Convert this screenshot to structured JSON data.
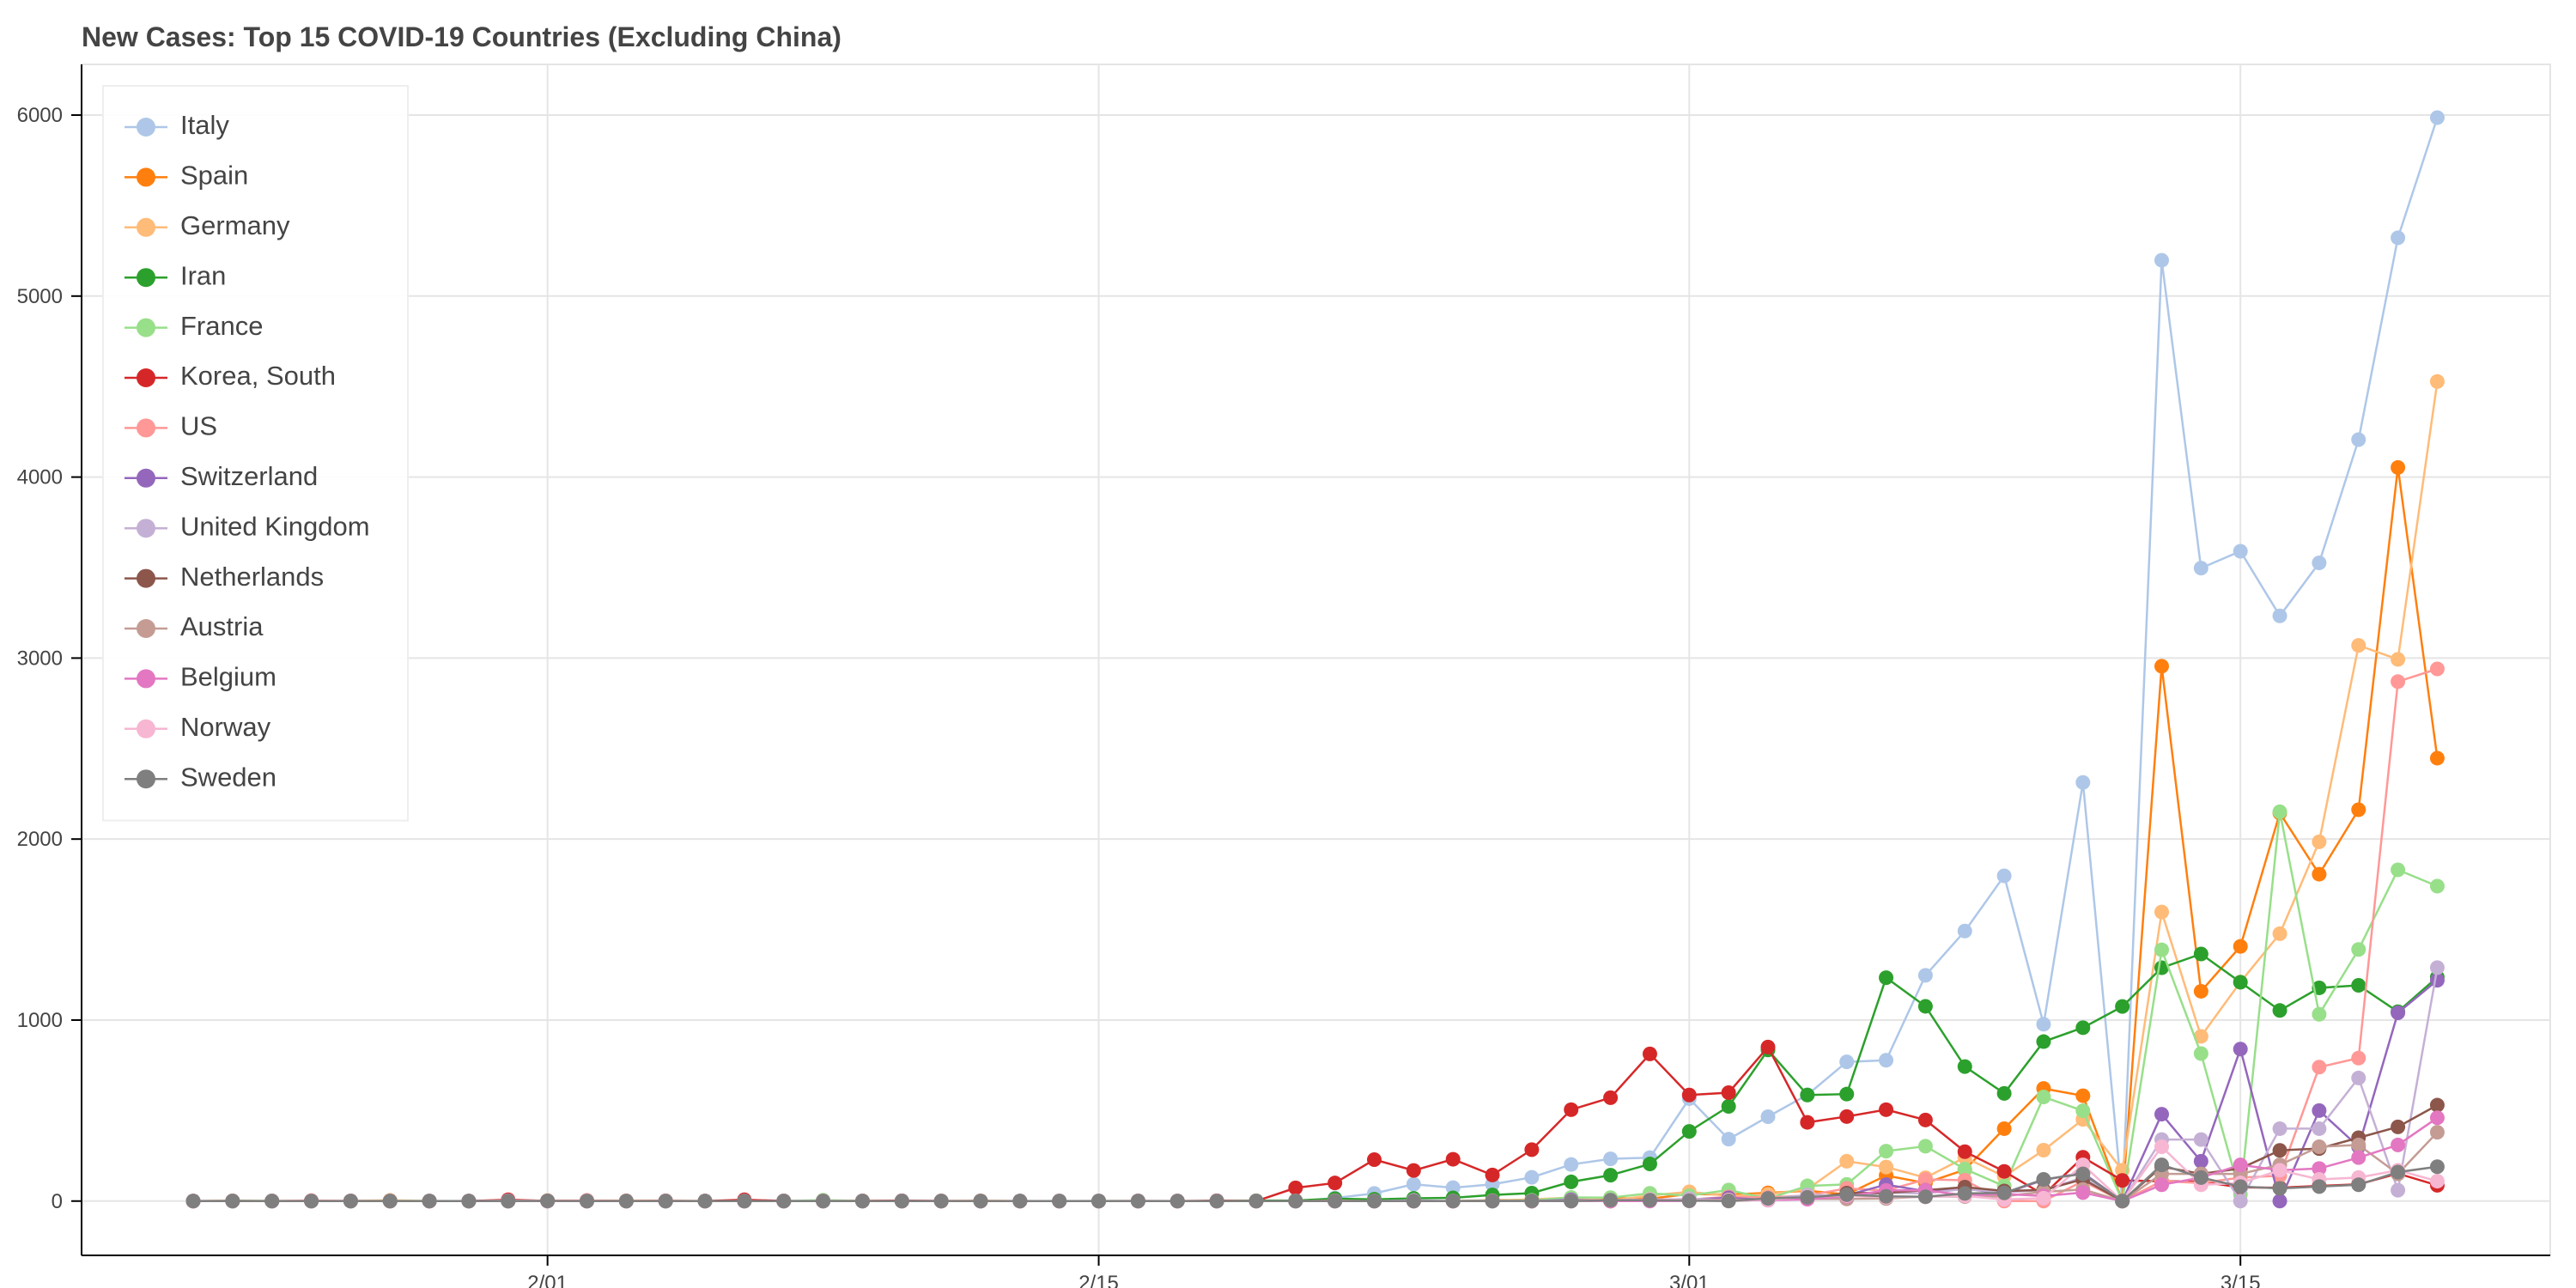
{
  "chart_data": {
    "type": "line",
    "title": "New Cases: Top 15 COVID-19 Countries (Excluding China)",
    "x": [
      "1/23",
      "1/24",
      "1/25",
      "1/26",
      "1/27",
      "1/28",
      "1/29",
      "1/30",
      "1/31",
      "2/1",
      "2/2",
      "2/3",
      "2/4",
      "2/5",
      "2/6",
      "2/7",
      "2/8",
      "2/9",
      "2/10",
      "2/11",
      "2/12",
      "2/13",
      "2/14",
      "2/15",
      "2/16",
      "2/17",
      "2/18",
      "2/19",
      "2/20",
      "2/21",
      "2/22",
      "2/23",
      "2/24",
      "2/25",
      "2/26",
      "2/27",
      "2/28",
      "2/29",
      "3/1",
      "3/2",
      "3/3",
      "3/4",
      "3/5",
      "3/6",
      "3/7",
      "3/8",
      "3/9",
      "3/10",
      "3/11",
      "3/12",
      "3/13",
      "3/14",
      "3/15",
      "3/16",
      "3/17",
      "3/18",
      "3/19",
      "3/20"
    ],
    "xticks": [
      {
        "value": "2/1",
        "label": "2/01"
      },
      {
        "value": "2/15",
        "label": "2/15"
      },
      {
        "value": "3/1",
        "label": "3/01"
      },
      {
        "value": "3/15",
        "label": "3/15"
      }
    ],
    "ylim": [
      -300,
      6280
    ],
    "yticks": [
      0,
      1000,
      2000,
      3000,
      4000,
      5000,
      6000
    ],
    "grid": true,
    "legend": "top-left",
    "series": [
      {
        "name": "Italy",
        "color": "#aec7e8",
        "values": [
          0,
          0,
          0,
          0,
          0,
          0,
          0,
          0,
          2,
          0,
          0,
          0,
          0,
          0,
          0,
          1,
          0,
          0,
          0,
          0,
          0,
          0,
          0,
          0,
          0,
          0,
          0,
          0,
          0,
          17,
          42,
          93,
          74,
          93,
          131,
          202,
          233,
          240,
          566,
          342,
          466,
          587,
          769,
          778,
          1247,
          1492,
          1797,
          977,
          2313,
          0,
          5198,
          3497,
          3590,
          3233,
          3526,
          4207,
          5322,
          5986
        ]
      },
      {
        "name": "Spain",
        "color": "#ff7f0e",
        "values": [
          0,
          0,
          0,
          0,
          0,
          0,
          0,
          0,
          0,
          1,
          0,
          0,
          0,
          0,
          0,
          0,
          0,
          1,
          0,
          0,
          0,
          0,
          0,
          0,
          0,
          0,
          0,
          0,
          0,
          0,
          0,
          0,
          0,
          4,
          7,
          2,
          17,
          13,
          39,
          36,
          45,
          57,
          37,
          141,
          100,
          173,
          400,
          622,
          582,
          0,
          2955,
          1159,
          1407,
          2144,
          1806,
          2162,
          4053,
          2447
        ]
      },
      {
        "name": "Germany",
        "color": "#ffbb78",
        "values": [
          0,
          0,
          0,
          0,
          0,
          4,
          0,
          0,
          1,
          3,
          0,
          2,
          2,
          0,
          0,
          1,
          0,
          0,
          1,
          0,
          2,
          0,
          0,
          0,
          0,
          0,
          0,
          0,
          0,
          0,
          0,
          0,
          0,
          1,
          10,
          19,
          2,
          31,
          51,
          29,
          37,
          66,
          220,
          188,
          129,
          241,
          136,
          281,
          451,
          170,
          1597,
          910,
          1210,
          1477,
          1985,
          3070,
          2993,
          4528
        ]
      },
      {
        "name": "Iran",
        "color": "#2ca02c",
        "values": [
          0,
          0,
          0,
          0,
          0,
          0,
          0,
          0,
          0,
          0,
          0,
          0,
          0,
          0,
          0,
          0,
          0,
          0,
          0,
          0,
          0,
          0,
          0,
          0,
          0,
          0,
          0,
          2,
          3,
          13,
          10,
          15,
          18,
          34,
          44,
          106,
          143,
          205,
          385,
          523,
          835,
          586,
          591,
          1234,
          1076,
          743,
          595,
          881,
          958,
          1075,
          1289,
          1365,
          1209,
          1053,
          1178,
          1192,
          1046,
          1237
        ]
      },
      {
        "name": "France",
        "color": "#98df8a",
        "values": [
          0,
          2,
          1,
          0,
          0,
          1,
          1,
          0,
          0,
          1,
          0,
          0,
          0,
          0,
          0,
          0,
          5,
          0,
          0,
          0,
          0,
          0,
          0,
          1,
          0,
          0,
          0,
          0,
          0,
          0,
          0,
          0,
          0,
          2,
          4,
          20,
          19,
          43,
          30,
          61,
          13,
          84,
          92,
          276,
          303,
          177,
          83,
          575,
          499,
          0,
          1388,
          815,
          36,
          2151,
          1032,
          1390,
          1830,
          1740
        ]
      },
      {
        "name": "Korea, South",
        "color": "#d62728",
        "values": [
          0,
          1,
          0,
          1,
          1,
          0,
          0,
          0,
          7,
          1,
          3,
          0,
          1,
          0,
          7,
          1,
          0,
          1,
          2,
          1,
          0,
          0,
          0,
          0,
          1,
          0,
          2,
          0,
          73,
          100,
          229,
          169,
          231,
          144,
          284,
          505,
          571,
          813,
          586,
          599,
          851,
          435,
          467,
          505,
          448,
          273,
          164,
          35,
          242,
          114,
          110,
          107,
          76,
          74,
          84,
          93,
          152,
          87
        ]
      },
      {
        "name": "US",
        "color": "#ff9896",
        "values": [
          0,
          1,
          0,
          3,
          0,
          0,
          0,
          0,
          1,
          2,
          3,
          0,
          0,
          0,
          0,
          0,
          0,
          0,
          0,
          0,
          1,
          0,
          0,
          0,
          0,
          0,
          0,
          0,
          0,
          2,
          0,
          0,
          0,
          0,
          0,
          0,
          2,
          7,
          8,
          23,
          20,
          31,
          70,
          58,
          120,
          115,
          0,
          0,
          110,
          0,
          110,
          100,
          130,
          140,
          740,
          790,
          2870,
          2940
        ]
      },
      {
        "name": "Switzerland",
        "color": "#9467bd",
        "values": [
          0,
          0,
          0,
          0,
          0,
          0,
          0,
          0,
          0,
          0,
          0,
          0,
          0,
          0,
          0,
          0,
          0,
          0,
          0,
          0,
          0,
          0,
          0,
          0,
          0,
          0,
          0,
          0,
          0,
          0,
          0,
          0,
          0,
          1,
          0,
          7,
          1,
          8,
          9,
          18,
          6,
          21,
          32,
          91,
          55,
          68,
          42,
          117,
          156,
          0,
          480,
          220,
          840,
          0,
          500,
          300,
          1040,
          1220
        ]
      },
      {
        "name": "United Kingdom",
        "color": "#c5b0d5",
        "values": [
          0,
          0,
          0,
          0,
          0,
          0,
          0,
          0,
          2,
          0,
          0,
          0,
          0,
          0,
          0,
          1,
          0,
          0,
          1,
          0,
          0,
          0,
          0,
          0,
          0,
          0,
          0,
          0,
          0,
          0,
          0,
          4,
          0,
          0,
          0,
          2,
          5,
          3,
          13,
          4,
          11,
          34,
          29,
          46,
          43,
          67,
          48,
          61,
          130,
          0,
          340,
          340,
          0,
          400,
          400,
          680,
          60,
          1290
        ]
      },
      {
        "name": "Netherlands",
        "color": "#8c564b",
        "values": [
          0,
          0,
          0,
          0,
          0,
          0,
          0,
          0,
          0,
          0,
          0,
          0,
          0,
          0,
          0,
          0,
          0,
          0,
          0,
          0,
          0,
          0,
          0,
          0,
          0,
          0,
          0,
          0,
          0,
          0,
          0,
          0,
          0,
          0,
          0,
          1,
          0,
          5,
          4,
          8,
          6,
          14,
          44,
          46,
          60,
          77,
          56,
          61,
          121,
          0,
          190,
          150,
          180,
          280,
          290,
          350,
          410,
          530
        ]
      },
      {
        "name": "Austria",
        "color": "#c49c94",
        "values": [
          0,
          0,
          0,
          0,
          0,
          0,
          0,
          0,
          0,
          0,
          0,
          0,
          0,
          0,
          0,
          0,
          0,
          0,
          0,
          0,
          0,
          0,
          0,
          0,
          0,
          0,
          0,
          0,
          0,
          0,
          0,
          0,
          0,
          2,
          0,
          1,
          0,
          6,
          4,
          0,
          8,
          12,
          12,
          14,
          25,
          25,
          27,
          51,
          64,
          0,
          150,
          150,
          150,
          200,
          300,
          310,
          150,
          380
        ]
      },
      {
        "name": "Belgium",
        "color": "#e377c2",
        "values": [
          0,
          0,
          0,
          0,
          0,
          0,
          0,
          0,
          0,
          0,
          0,
          0,
          1,
          0,
          0,
          0,
          0,
          0,
          0,
          0,
          0,
          0,
          0,
          0,
          0,
          0,
          0,
          0,
          0,
          0,
          0,
          0,
          0,
          0,
          0,
          0,
          0,
          0,
          1,
          6,
          5,
          10,
          27,
          59,
          60,
          31,
          39,
          28,
          47,
          0,
          90,
          130,
          200,
          170,
          180,
          240,
          310,
          460
        ]
      },
      {
        "name": "Norway",
        "color": "#f7b6d2",
        "values": [
          0,
          0,
          0,
          0,
          0,
          0,
          0,
          0,
          0,
          0,
          0,
          0,
          0,
          0,
          0,
          0,
          0,
          0,
          0,
          0,
          0,
          0,
          0,
          0,
          0,
          0,
          0,
          0,
          0,
          0,
          0,
          0,
          0,
          0,
          1,
          0,
          5,
          9,
          4,
          6,
          7,
          24,
          30,
          21,
          23,
          29,
          9,
          16,
          200,
          0,
          300,
          90,
          100,
          170,
          120,
          130,
          170,
          110
        ]
      },
      {
        "name": "Sweden",
        "color": "#7f7f7f",
        "values": [
          0,
          0,
          0,
          0,
          0,
          0,
          0,
          0,
          0,
          1,
          0,
          0,
          0,
          0,
          0,
          0,
          0,
          0,
          0,
          0,
          0,
          0,
          0,
          0,
          0,
          0,
          0,
          0,
          0,
          0,
          0,
          0,
          0,
          0,
          1,
          0,
          5,
          5,
          2,
          1,
          15,
          21,
          35,
          26,
          24,
          42,
          45,
          120,
          150,
          0,
          200,
          130,
          80,
          70,
          80,
          90,
          160,
          190
        ]
      }
    ]
  }
}
